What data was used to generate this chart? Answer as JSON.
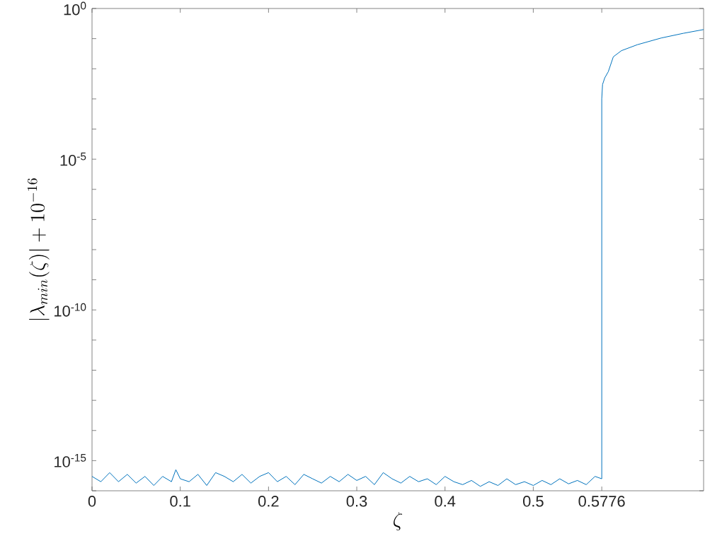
{
  "chart_data": {
    "type": "line",
    "xlabel": "\\zeta",
    "ylabel": "|\\lambda_{min}(\\zeta)|+10^{-16}",
    "log": "y",
    "xlim": [
      0,
      0.693
    ],
    "ylim": [
      1e-16,
      1
    ],
    "xticks": [
      0,
      0.1,
      0.2,
      0.3,
      0.4,
      0.5,
      0.5776
    ],
    "yticks": [
      {
        "value": 1e-16,
        "label": null
      },
      {
        "value": 1e-15,
        "label": "10$^{-15}$"
      },
      {
        "value": 1e-14,
        "label": null
      },
      {
        "value": 1e-13,
        "label": null
      },
      {
        "value": 1e-12,
        "label": null
      },
      {
        "value": 1e-11,
        "label": null
      },
      {
        "value": 1e-10,
        "label": "10$^{-10}$"
      },
      {
        "value": 1e-09,
        "label": null
      },
      {
        "value": 1e-08,
        "label": null
      },
      {
        "value": 1e-07,
        "label": null
      },
      {
        "value": 1e-06,
        "label": null
      },
      {
        "value": 1e-05,
        "label": "10$^{-5}$"
      },
      {
        "value": 0.0001,
        "label": null
      },
      {
        "value": 0.001,
        "label": null
      },
      {
        "value": 0.01,
        "label": null
      },
      {
        "value": 0.1,
        "label": null
      },
      {
        "value": 1,
        "label": "10$^{0}$"
      }
    ],
    "marker": "none",
    "grid": false,
    "series": [
      {
        "color": "#0072bd",
        "x": [
          0,
          0.01,
          0.02,
          0.03,
          0.04,
          0.05,
          0.06,
          0.07,
          0.08,
          0.09,
          0.095,
          0.1,
          0.11,
          0.12,
          0.13,
          0.14,
          0.15,
          0.16,
          0.17,
          0.18,
          0.19,
          0.2,
          0.21,
          0.22,
          0.23,
          0.24,
          0.25,
          0.26,
          0.27,
          0.28,
          0.29,
          0.3,
          0.31,
          0.32,
          0.33,
          0.34,
          0.35,
          0.36,
          0.37,
          0.38,
          0.39,
          0.4,
          0.41,
          0.42,
          0.43,
          0.44,
          0.45,
          0.46,
          0.47,
          0.48,
          0.49,
          0.5,
          0.51,
          0.52,
          0.53,
          0.54,
          0.55,
          0.56,
          0.57,
          0.5776,
          0.5776,
          0.5785,
          0.581,
          0.585,
          0.5907,
          0.6,
          0.618,
          0.645,
          0.67,
          0.693
        ],
        "values": [
          3e-16,
          2e-16,
          4e-16,
          2e-16,
          3.5e-16,
          1.8e-16,
          3e-16,
          1.5e-16,
          3e-16,
          2e-16,
          5e-16,
          2.5e-16,
          2e-16,
          3.5e-16,
          1.5e-16,
          4e-16,
          3e-16,
          2e-16,
          3.5e-16,
          1.8e-16,
          3e-16,
          4e-16,
          2e-16,
          3e-16,
          1.6e-16,
          3.5e-16,
          2.5e-16,
          1.8e-16,
          3e-16,
          2e-16,
          3.5e-16,
          2.2e-16,
          3e-16,
          1.6e-16,
          4e-16,
          2.5e-16,
          1.8e-16,
          3e-16,
          2e-16,
          2.5e-16,
          1.6e-16,
          3e-16,
          2e-16,
          1.6e-16,
          2.2e-16,
          1.4e-16,
          2e-16,
          1.5e-16,
          2.5e-16,
          1.6e-16,
          2e-16,
          1.5e-16,
          2.2e-16,
          1.6e-16,
          2.5e-16,
          1.7e-16,
          2.2e-16,
          1.6e-16,
          3e-16,
          2.5e-16,
          0.001,
          0.003,
          0.005,
          0.008,
          0.025,
          0.04,
          0.063,
          0.105,
          0.15,
          0.2
        ]
      }
    ]
  }
}
